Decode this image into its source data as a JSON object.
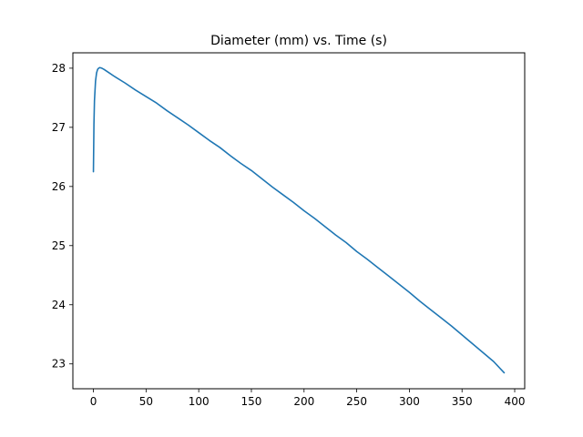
{
  "chart_data": {
    "type": "line",
    "title": "Diameter (mm) vs. Time (s)",
    "xlabel": "",
    "ylabel": "",
    "xlim": [
      -19.5,
      409.5
    ],
    "ylim": [
      22.58,
      28.26
    ],
    "grid": false,
    "legend": "none",
    "x_ticks": [
      0,
      50,
      100,
      150,
      200,
      250,
      300,
      350,
      400
    ],
    "y_ticks": [
      23,
      24,
      25,
      26,
      27,
      28
    ],
    "series": [
      {
        "color": "#1f77b4",
        "x": [
          0,
          0.5,
          1,
          2,
          3,
          4,
          5,
          6,
          8,
          10,
          15,
          20,
          30,
          40,
          50,
          60,
          70,
          80,
          90,
          100,
          110,
          120,
          130,
          140,
          150,
          160,
          170,
          180,
          190,
          200,
          210,
          220,
          230,
          240,
          250,
          260,
          270,
          280,
          290,
          300,
          310,
          320,
          330,
          340,
          350,
          360,
          370,
          380,
          390
        ],
        "y": [
          26.25,
          27.05,
          27.45,
          27.78,
          27.92,
          27.98,
          28.0,
          28.01,
          28.0,
          27.98,
          27.92,
          27.86,
          27.75,
          27.63,
          27.52,
          27.41,
          27.28,
          27.16,
          27.04,
          26.91,
          26.78,
          26.66,
          26.52,
          26.39,
          26.27,
          26.13,
          25.99,
          25.86,
          25.73,
          25.59,
          25.46,
          25.32,
          25.18,
          25.05,
          24.9,
          24.77,
          24.63,
          24.49,
          24.35,
          24.21,
          24.06,
          23.92,
          23.78,
          23.64,
          23.49,
          23.34,
          23.19,
          23.04,
          22.85
        ]
      }
    ]
  }
}
